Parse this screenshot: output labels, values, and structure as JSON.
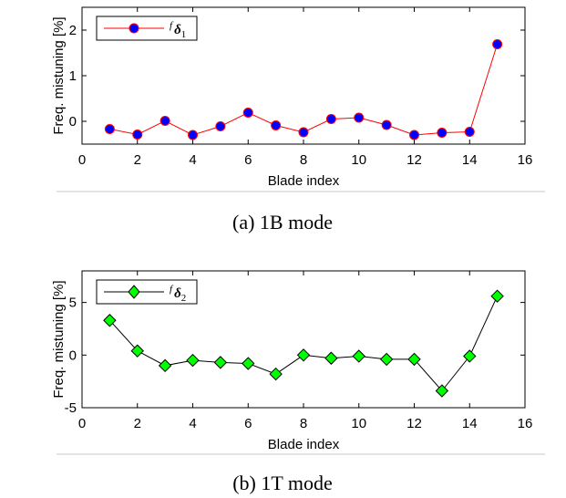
{
  "chart_data": [
    {
      "type": "line",
      "caption": "(a) 1B mode",
      "xlabel": "Blade index",
      "ylabel": "Freq. mistuning [%]",
      "xlim": [
        0,
        16
      ],
      "ylim": [
        -0.5,
        2.5
      ],
      "xticks": [
        0,
        2,
        4,
        6,
        8,
        10,
        12,
        14,
        16
      ],
      "yticks": [
        0,
        1,
        2
      ],
      "grid": false,
      "legend_position": "top-left",
      "series": [
        {
          "name": "fδ1",
          "legend_sup": "f",
          "legend_sym": "δ",
          "legend_sub": "1",
          "marker": "circle",
          "line_color": "#ff0000",
          "marker_face": "#0000ff",
          "marker_edge": "#ff0000",
          "x": [
            1,
            2,
            3,
            4,
            5,
            6,
            7,
            8,
            9,
            10,
            11,
            12,
            13,
            14,
            15
          ],
          "y": [
            -0.17,
            -0.29,
            0.01,
            -0.3,
            -0.11,
            0.19,
            -0.09,
            -0.24,
            0.05,
            0.08,
            -0.08,
            -0.3,
            -0.25,
            -0.23,
            1.69
          ]
        }
      ]
    },
    {
      "type": "line",
      "caption": "(b) 1T mode",
      "xlabel": "Blade index",
      "ylabel": "Freq. mistuning [%]",
      "xlim": [
        0,
        16
      ],
      "ylim": [
        -5,
        8
      ],
      "xticks": [
        0,
        2,
        4,
        6,
        8,
        10,
        12,
        14,
        16
      ],
      "yticks": [
        -5,
        0,
        5
      ],
      "grid": false,
      "legend_position": "top-left",
      "series": [
        {
          "name": "fδ2",
          "legend_sup": "f",
          "legend_sym": "δ",
          "legend_sub": "2",
          "marker": "diamond",
          "line_color": "#000000",
          "marker_face": "#00ff00",
          "marker_edge": "#000000",
          "x": [
            1,
            2,
            3,
            4,
            5,
            6,
            7,
            8,
            9,
            10,
            11,
            12,
            13,
            14,
            15
          ],
          "y": [
            3.3,
            0.4,
            -1.0,
            -0.5,
            -0.7,
            -0.8,
            -1.8,
            0.0,
            -0.3,
            -0.1,
            -0.4,
            -0.4,
            -3.4,
            -0.1,
            5.6
          ]
        }
      ]
    }
  ]
}
